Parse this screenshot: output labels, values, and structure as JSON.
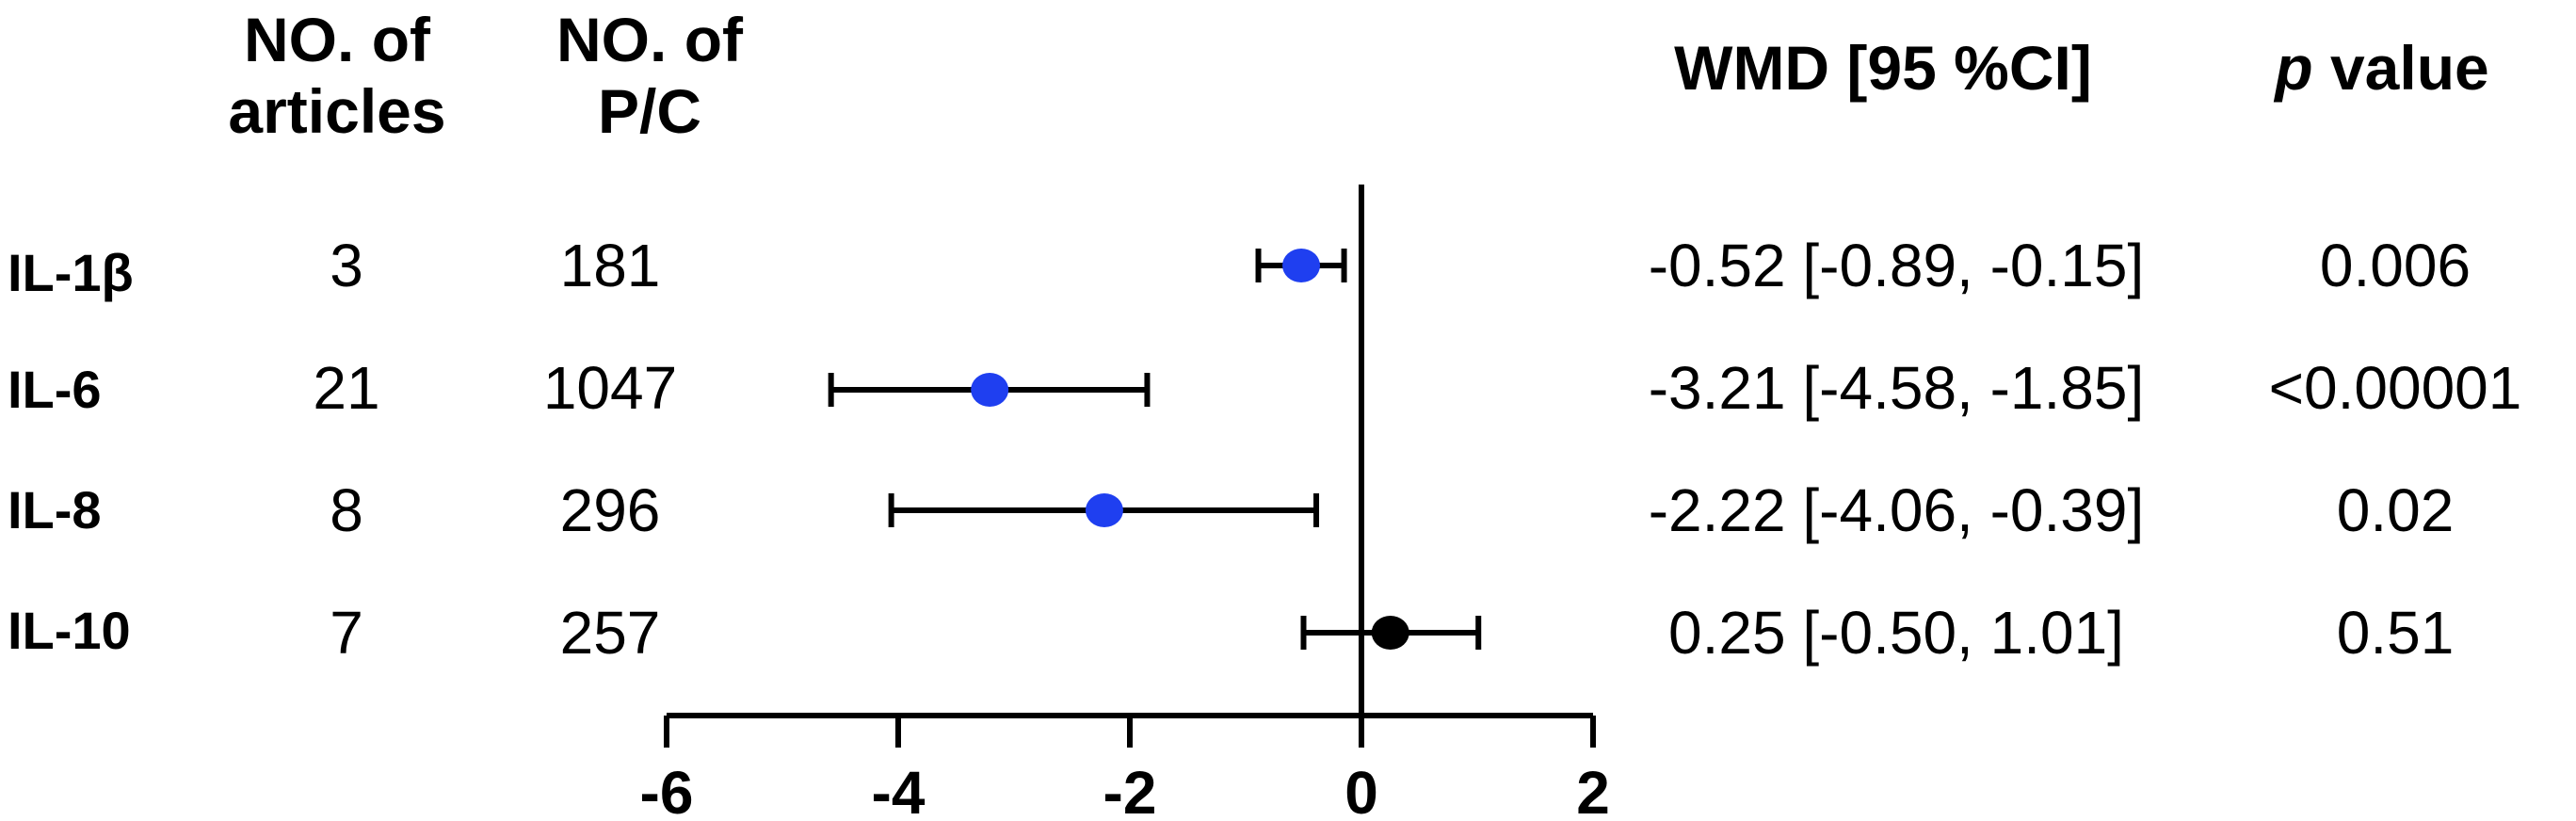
{
  "headers": {
    "articles_line1": "NO. of",
    "articles_line2": "articles",
    "pc_line1": "NO. of",
    "pc_line2": "P/C",
    "wmd": "WMD [95 %CI]",
    "p_italic": "p",
    "p_rest": " value"
  },
  "rows": [
    {
      "label": "IL-1β",
      "articles": "3",
      "pc": "181",
      "wmd_text": "-0.52 [-0.89, -0.15]",
      "p": "0.006"
    },
    {
      "label": "IL-6",
      "articles": "21",
      "pc": "1047",
      "wmd_text": "-3.21 [-4.58, -1.85]",
      "p": "<0.00001"
    },
    {
      "label": "IL-8",
      "articles": "8",
      "pc": "296",
      "wmd_text": "-2.22 [-4.06, -0.39]",
      "p": "0.02"
    },
    {
      "label": "IL-10",
      "articles": "7",
      "pc": "257",
      "wmd_text": "0.25 [-0.50, 1.01]",
      "p": "0.51"
    }
  ],
  "chart_data": {
    "type": "scatter",
    "subtype": "forest-plot",
    "xlim": [
      -6,
      2
    ],
    "xticks": [
      -6,
      -4,
      -2,
      0,
      2
    ],
    "xtick_labels": [
      "-6",
      "-4",
      "-2",
      "0",
      "2"
    ],
    "reference_line": 0,
    "grid": false,
    "categories": [
      "IL-1β",
      "IL-6",
      "IL-8",
      "IL-10"
    ],
    "estimates": [
      -0.52,
      -3.21,
      -2.22,
      0.25
    ],
    "ci_lower": [
      -0.89,
      -4.58,
      -4.06,
      -0.5
    ],
    "ci_upper": [
      -0.15,
      -1.85,
      -0.39,
      1.01
    ],
    "point_colors": [
      "#1f3ff0",
      "#1f3ff0",
      "#1f3ff0",
      "#000000"
    ]
  }
}
